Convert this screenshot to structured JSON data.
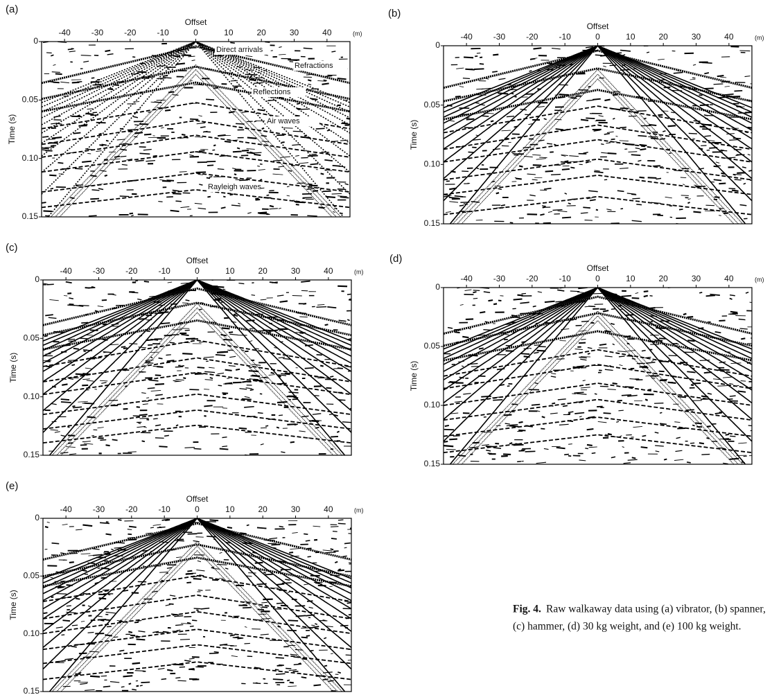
{
  "figure": {
    "axes": {
      "x_label": "Offset",
      "x_unit": "(m)",
      "y_label": "Time (s)",
      "xlim": [
        -47,
        47
      ],
      "ylim": [
        0,
        0.15
      ],
      "xticks": [
        -40,
        -30,
        -20,
        -10,
        0,
        10,
        20,
        30,
        40
      ],
      "yticks": [
        0,
        0.05,
        {
          "value": 0.1,
          "label": "0.10"
        },
        0.15
      ]
    },
    "panels": [
      {
        "label": "(a)",
        "annotations": [
          "Direct arrivals",
          "Refractions",
          "Reflections",
          "Air waves",
          "Rayleigh waves"
        ]
      },
      {
        "label": "(b)"
      },
      {
        "label": "(c)"
      },
      {
        "label": "(d)"
      },
      {
        "label": "(e)"
      }
    ],
    "caption": {
      "number": "Fig. 4.",
      "lines": [
        "Raw walkaway data using (a) vibrator, (b) spanner,",
        "(c) hammer, (d) 30 kg weight, and (e) 100 kg weight."
      ]
    }
  }
}
